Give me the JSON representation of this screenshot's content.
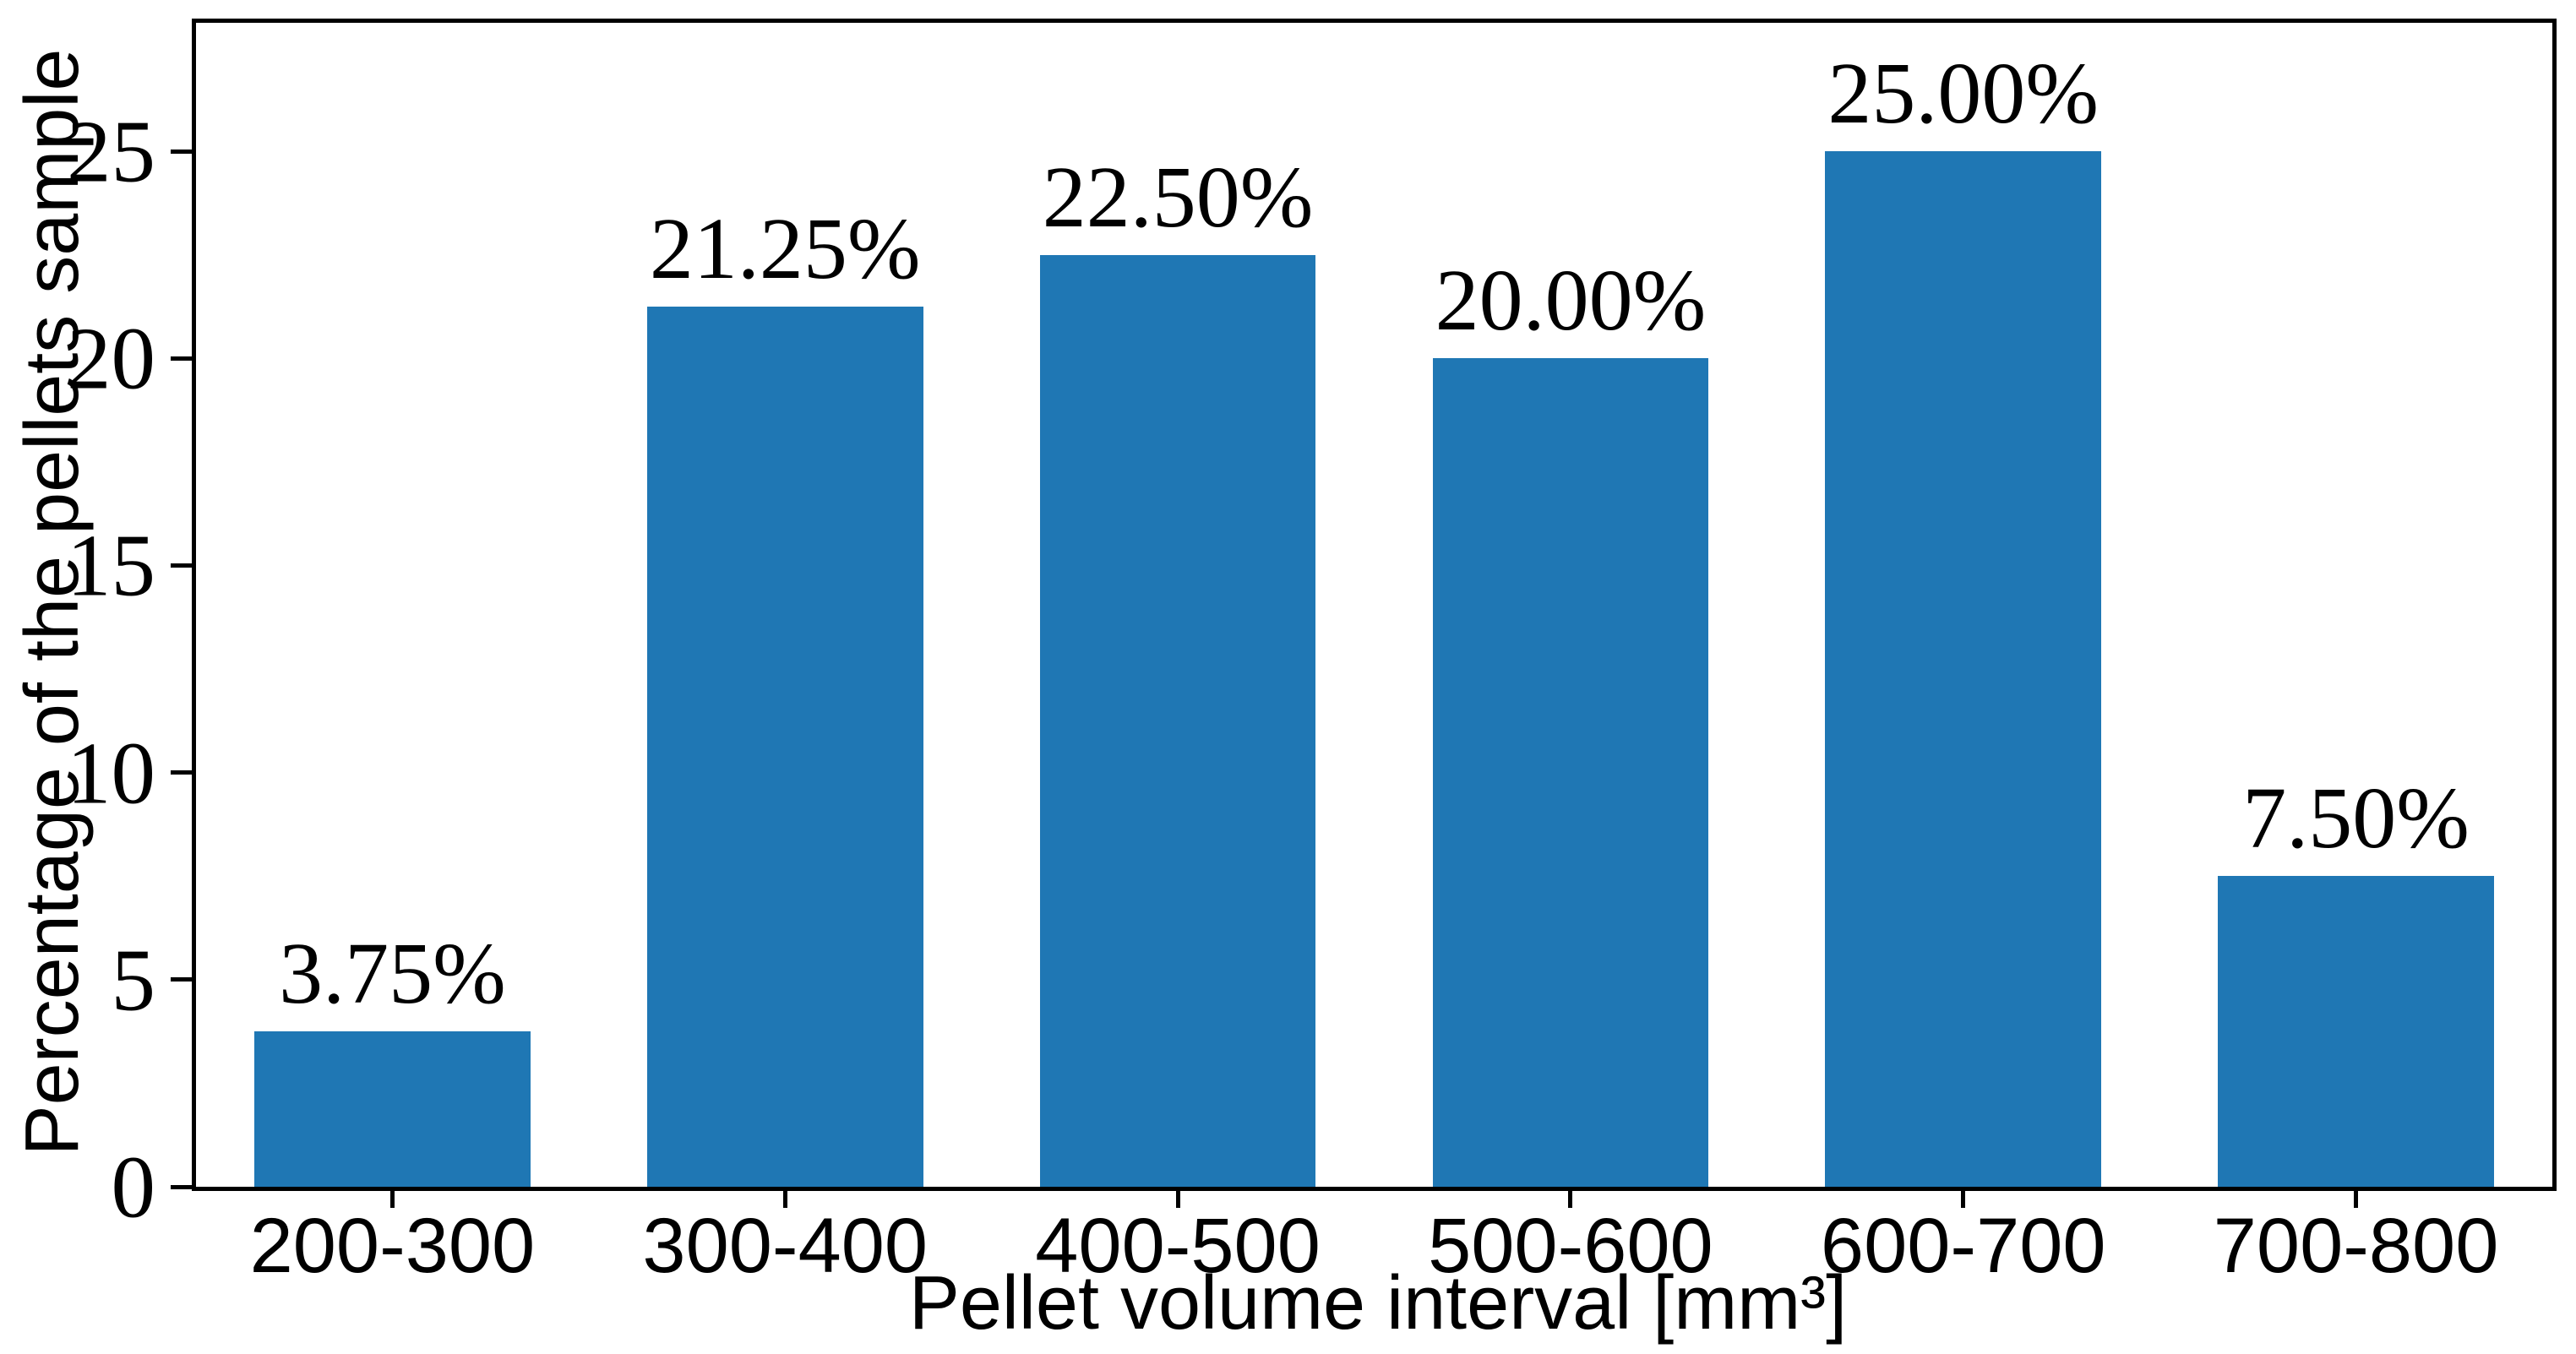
{
  "figure": {
    "background_color": "#ffffff",
    "spine_color": "#000000",
    "text_color": "#000000"
  },
  "chart_data": {
    "type": "bar",
    "title": "",
    "categories": [
      "200-300",
      "300-400",
      "400-500",
      "500-600",
      "600-700",
      "700-800"
    ],
    "values": [
      3.75,
      21.25,
      22.5,
      20.0,
      25.0,
      7.5
    ],
    "value_labels": [
      "3.75%",
      "21.25%",
      "22.50%",
      "20.00%",
      "25.00%",
      "7.50%"
    ],
    "xlabel": "Pellet volume interval [mm³]",
    "ylabel": "Percentage of the pellets sample",
    "yticks": [
      0,
      5,
      10,
      15,
      20,
      25
    ],
    "ylim": [
      0,
      28.1
    ],
    "bar_color": "#1f77b4",
    "bar_width_fraction": 0.703,
    "grid": false,
    "legend": false,
    "annotations_position": "above-bars"
  }
}
